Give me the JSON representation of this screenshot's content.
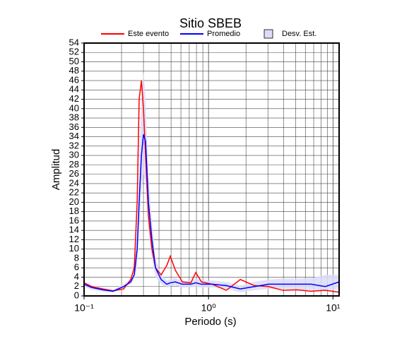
{
  "chart_data": {
    "type": "line",
    "title": "Sitio SBEB",
    "xlabel": "Periodo (s)",
    "ylabel": "Amplitud",
    "xscale": "log",
    "xlim": [
      0.1,
      11.2
    ],
    "ylim": [
      0,
      54
    ],
    "xticks": [
      {
        "value": 0.1,
        "label": "10⁻¹"
      },
      {
        "value": 1,
        "label": "10⁰"
      },
      {
        "value": 10,
        "label": "10¹"
      }
    ],
    "yticks": [
      0,
      2,
      4,
      6,
      8,
      10,
      12,
      14,
      16,
      18,
      20,
      22,
      24,
      26,
      28,
      30,
      32,
      34,
      36,
      38,
      40,
      42,
      44,
      46,
      48,
      50,
      52,
      54
    ],
    "grid": true,
    "legend": "top",
    "x": [
      0.1,
      0.115,
      0.141,
      0.171,
      0.208,
      0.237,
      0.253,
      0.267,
      0.277,
      0.289,
      0.3,
      0.312,
      0.329,
      0.351,
      0.375,
      0.416,
      0.462,
      0.493,
      0.541,
      0.616,
      0.721,
      0.79,
      0.877,
      1.07,
      1.39,
      1.8,
      2.34,
      3.04,
      3.95,
      5.13,
      6.67,
      8.66,
      11.2
    ],
    "series": [
      {
        "name": "Este evento",
        "color": "#ff0000",
        "values": [
          2.8,
          2.0,
          1.5,
          1.1,
          1.5,
          3.5,
          6,
          20,
          42,
          46,
          40,
          30,
          17,
          10,
          6,
          4.5,
          6.5,
          8.5,
          5.5,
          3,
          2.8,
          5,
          3,
          2.5,
          1.2,
          3.5,
          2.2,
          2,
          1.2,
          1.3,
          1,
          1.2,
          0.8
        ]
      },
      {
        "name": "Promedio",
        "color": "#0000ff",
        "values": [
          2.5,
          1.8,
          1.3,
          1.0,
          2.0,
          3,
          4.5,
          10,
          20,
          30,
          34.5,
          33,
          20,
          12,
          6,
          3.5,
          2.5,
          2.8,
          3,
          2.5,
          2.5,
          2.8,
          2.5,
          2.5,
          2.2,
          1.5,
          2,
          2.5,
          2.5,
          2.5,
          2.5,
          2,
          3
        ]
      }
    ],
    "band": {
      "name": "Desv. Est.",
      "color": "#dcdcf8",
      "lower": [
        2,
        1.3,
        0.9,
        0.7,
        1.5,
        2.5,
        3.5,
        6,
        14,
        22,
        26,
        24,
        14,
        8,
        4,
        2.5,
        1.8,
        2,
        2.2,
        1.8,
        1.8,
        2,
        1.8,
        1.8,
        1.5,
        0.8,
        1.2,
        1.5,
        1.5,
        1.3,
        1.2,
        1,
        1.5
      ],
      "upper": [
        3,
        2.3,
        1.7,
        1.3,
        2.5,
        3.5,
        5.5,
        14,
        28,
        42,
        48,
        42,
        26,
        16,
        8,
        4.5,
        3.3,
        3.6,
        3.8,
        3.2,
        3.2,
        3.6,
        3.3,
        3.3,
        3,
        2.2,
        3,
        3.5,
        3.7,
        3.7,
        3.8,
        4.5,
        4.5
      ]
    }
  }
}
